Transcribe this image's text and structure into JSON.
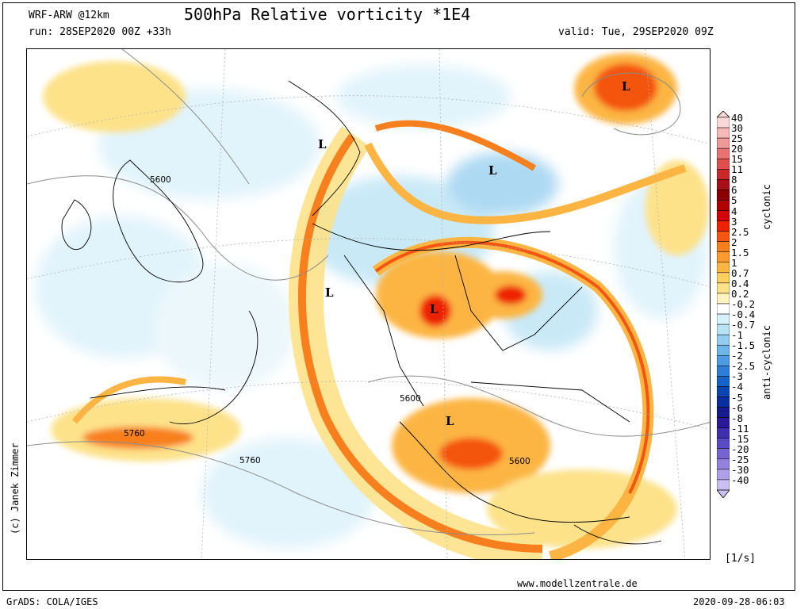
{
  "header": {
    "model": "WRF-ARW @12km",
    "title": "500hPa Relative vorticity *1E4",
    "run": "run: 28SEP2020 00Z +33h",
    "valid": "valid: Tue, 29SEP2020 09Z"
  },
  "footer": {
    "copyright": "(c) Janek Zimmer",
    "website": "www.modellzentrale.de",
    "software": "GrADS: COLA/IGES",
    "timestamp": "2020-09-28-06:03"
  },
  "legend": {
    "cyclonic_label": "cyclonic",
    "anticyclonic_label": "anti-cyclonic",
    "units": "[1/s]",
    "levels": [
      "40",
      "30",
      "25",
      "20",
      "15",
      "11",
      "8",
      "6",
      "5",
      "4",
      "3",
      "2.5",
      "2",
      "1.5",
      "1",
      "0.7",
      "0.4",
      "0.2",
      "-0.2",
      "-0.4",
      "-0.7",
      "-1",
      "-1.5",
      "-2",
      "-2.5",
      "-3",
      "-4",
      "-5",
      "-6",
      "-8",
      "-11",
      "-15",
      "-20",
      "-25",
      "-30",
      "-40"
    ],
    "colors": [
      "#fcd9d9",
      "#f7b8b8",
      "#f09999",
      "#e87373",
      "#df4f4f",
      "#c82a2a",
      "#a50f15",
      "#8a0000",
      "#b00000",
      "#d40000",
      "#ee2200",
      "#f45510",
      "#f87f1e",
      "#fa9a2e",
      "#fcb542",
      "#fdcf5e",
      "#fde28a",
      "#fef3be",
      "#ffffff",
      "#d8f0fa",
      "#b8e2f5",
      "#93cdef",
      "#6eb5e7",
      "#4d9be0",
      "#2f7fd8",
      "#1663c8",
      "#0b45b4",
      "#0a2ea0",
      "#151b8c",
      "#2a1a9a",
      "#3f30b0",
      "#5a4ac2",
      "#7664d2",
      "#9281de",
      "#ae9fe8",
      "#c9bff2"
    ]
  },
  "map": {
    "pressure_markers": [
      "L",
      "L",
      "L",
      "L",
      "L",
      "L"
    ],
    "height_labels": [
      "5600",
      "5760",
      "5760",
      "5600",
      "5600"
    ]
  }
}
